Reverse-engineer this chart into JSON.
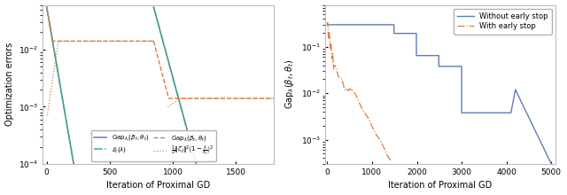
{
  "fig_width": 6.4,
  "fig_height": 2.2,
  "dpi": 100,
  "left_xlabel": "Iteration of Proximal GD",
  "left_ylabel": "Optimization errors",
  "left_xlim": [
    -30,
    1800
  ],
  "left_ylim": [
    0.0001,
    0.06
  ],
  "right_xlabel": "Iteration of Proximal GD",
  "right_ylabel": "Gap$_\\lambda(\\beta_t, \\theta_t)$",
  "right_xlim": [
    -50,
    5100
  ],
  "right_ylim": [
    0.0003,
    0.8
  ],
  "color_blue": "#5c7db5",
  "color_orange": "#e07b3a",
  "color_green": "#3db368",
  "bg_color": "#ffffff"
}
